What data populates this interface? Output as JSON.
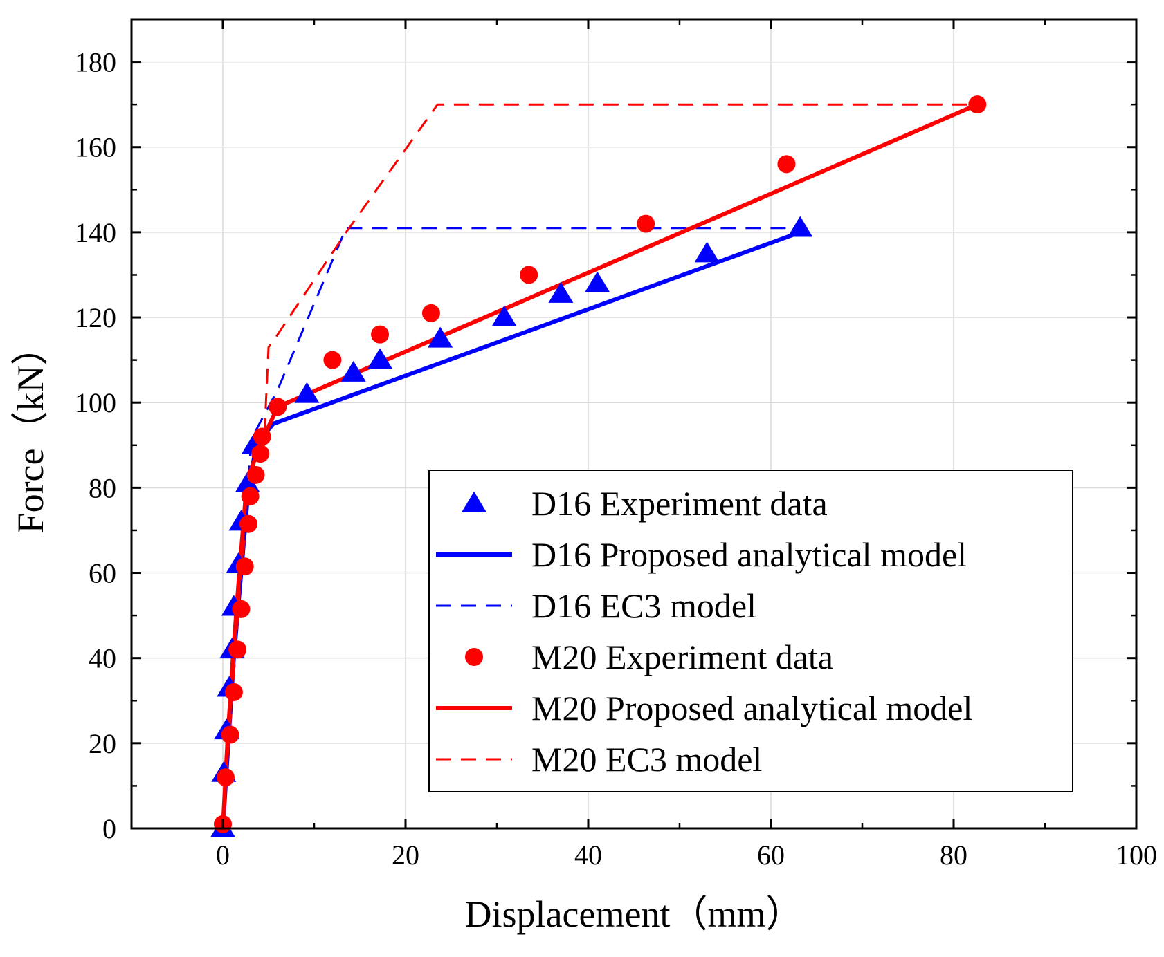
{
  "chart_data": {
    "type": "scatter",
    "title": "",
    "xlabel": "Displacement（mm）",
    "ylabel": "Force（kN）",
    "xlim": [
      -10,
      100
    ],
    "ylim": [
      0,
      190
    ],
    "xticks": [
      0,
      20,
      40,
      60,
      80,
      100
    ],
    "yticks": [
      0,
      20,
      40,
      60,
      80,
      100,
      120,
      140,
      160,
      180
    ],
    "grid": true,
    "legend_position": "bottom-right",
    "series": [
      {
        "name": "D16 Experiment data",
        "kind": "markers",
        "marker": "triangle",
        "color": "#0000ff",
        "x": [
          0,
          0.1,
          0.4,
          0.7,
          1.0,
          1.2,
          1.7,
          2.0,
          2.7,
          3.4,
          9.2,
          14.3,
          17.2,
          23.8,
          30.8,
          37.0,
          41.0,
          53.0,
          63.2
        ],
        "y": [
          0,
          13,
          23,
          33,
          42,
          52,
          62,
          72,
          81,
          90,
          102,
          107,
          110,
          115,
          120,
          125.5,
          128,
          135,
          141
        ]
      },
      {
        "name": "D16 Proposed analytical model",
        "kind": "line",
        "dash": "solid",
        "color": "#0000ff",
        "x": [
          0,
          0.6,
          1.2,
          2.0,
          2.8,
          3.5,
          4.0,
          5.5,
          63.2
        ],
        "y": [
          0,
          20,
          40,
          60,
          80,
          88,
          91,
          95,
          140
        ]
      },
      {
        "name": "D16 EC3 model",
        "kind": "line",
        "dash": "dashed",
        "color": "#0000ff",
        "x": [
          0,
          1.0,
          2.0,
          3.0,
          3.5,
          6.0,
          13.5,
          63.2
        ],
        "y": [
          0,
          30,
          60,
          88,
          93,
          103,
          141,
          141
        ]
      },
      {
        "name": "M20 Experiment data",
        "kind": "markers",
        "marker": "circle",
        "color": "#ff0000",
        "x": [
          0,
          0.3,
          0.8,
          1.2,
          1.6,
          2.0,
          2.4,
          2.8,
          3.0,
          3.6,
          4.1,
          4.3,
          6.0,
          12.0,
          17.2,
          22.8,
          33.5,
          46.3,
          61.7,
          82.6
        ],
        "y": [
          1,
          12,
          22,
          32,
          42,
          51.5,
          61.5,
          71.5,
          78,
          83,
          88,
          92,
          99,
          110,
          116,
          121,
          130,
          142,
          156,
          170
        ]
      },
      {
        "name": "M20 Proposed analytical model",
        "kind": "line",
        "dash": "solid",
        "color": "#ff0000",
        "x": [
          0,
          0.5,
          1.1,
          1.8,
          2.5,
          3.2,
          4.5,
          6.0,
          82.6
        ],
        "y": [
          0,
          20,
          40,
          60,
          78,
          85,
          92,
          99,
          170
        ]
      },
      {
        "name": "M20 EC3 model",
        "kind": "line",
        "dash": "dashed",
        "color": "#ff0000",
        "x": [
          0,
          1.0,
          2.0,
          3.0,
          4.5,
          5.0,
          6.0,
          13.5,
          23.5,
          82.6
        ],
        "y": [
          0,
          30,
          60,
          80,
          90,
          113,
          116,
          140,
          170,
          170
        ]
      }
    ]
  }
}
